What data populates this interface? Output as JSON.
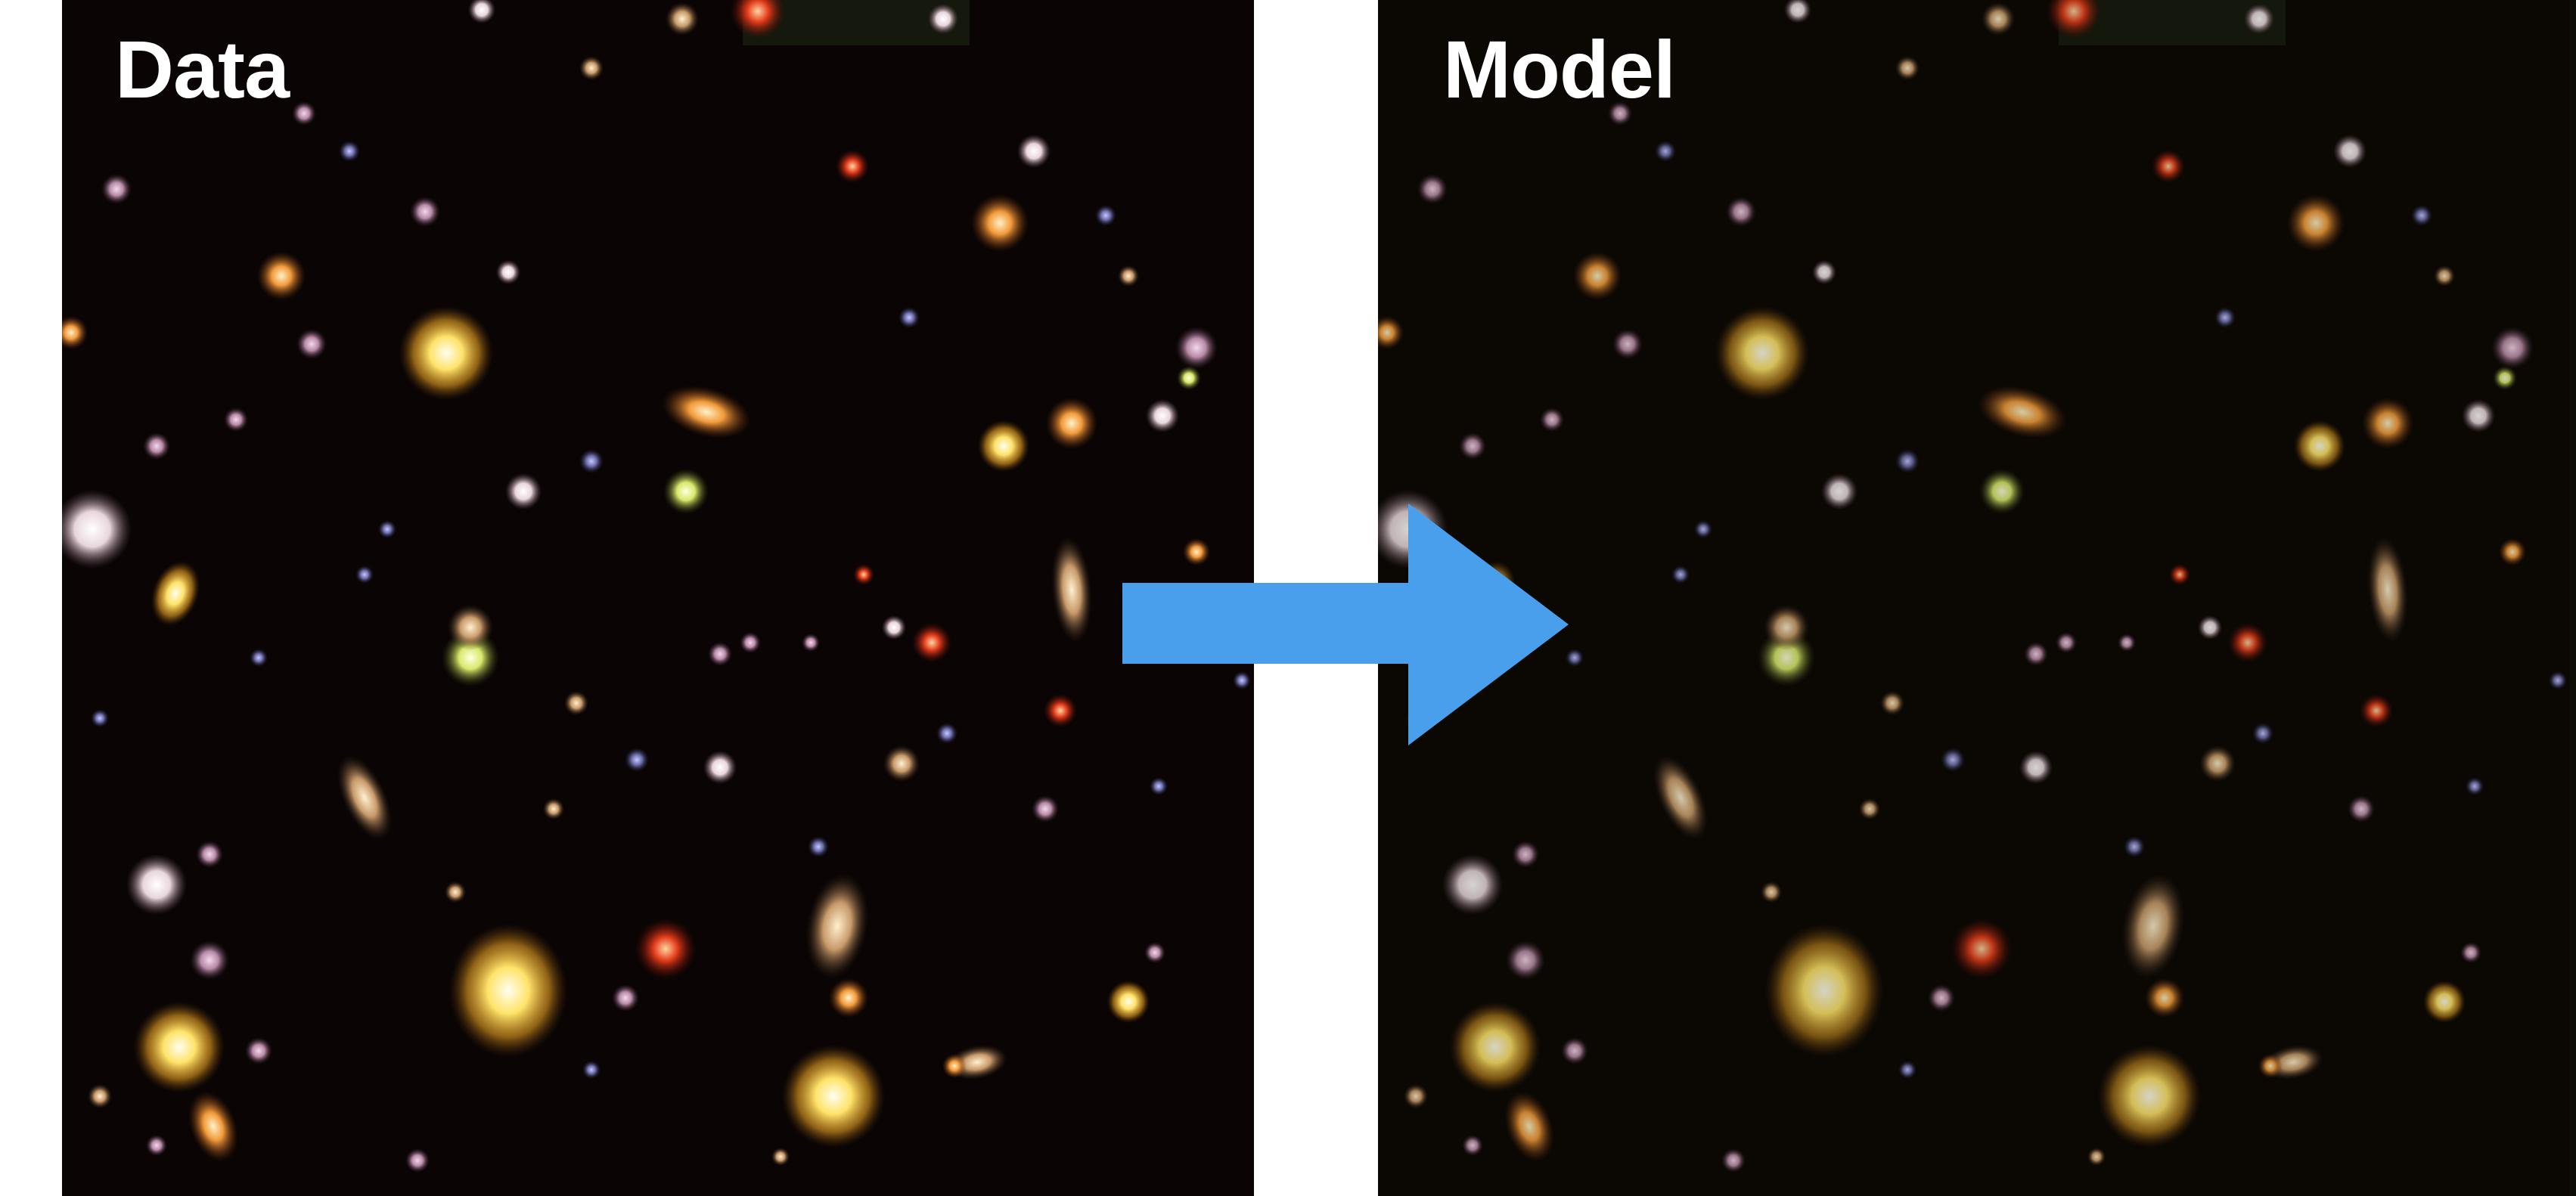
{
  "panels": {
    "data": {
      "label": "Data"
    },
    "model": {
      "label": "Model"
    }
  },
  "arrow": {
    "icon": "right-arrow-icon",
    "color": "#4a9fed"
  },
  "colors": {
    "background": "#ffffff",
    "sky": "#0a0504",
    "label": "#ffffff"
  }
}
